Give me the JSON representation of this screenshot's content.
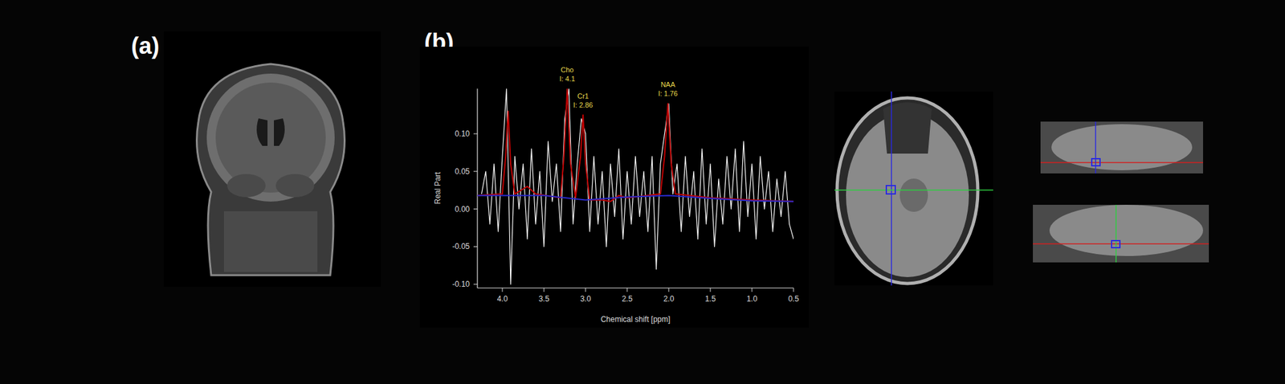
{
  "figure": {
    "panel_labels": [
      "(a)",
      "(b)"
    ]
  },
  "chart_data": {
    "type": "line",
    "xlabel": "Chemical shift [ppm]",
    "ylabel": "Real Part",
    "xlim": [
      4.3,
      0.5
    ],
    "ylim": [
      -0.105,
      0.16
    ],
    "xticks": [
      {
        "value": 4,
        "label": "4.0"
      },
      3.5,
      {
        "value": 3,
        "label": "3.0"
      },
      2.5,
      {
        "value": 2,
        "label": "2.0"
      },
      1.5,
      {
        "value": 1,
        "label": "1.0"
      },
      0.5
    ],
    "yticks": [
      {
        "value": 0.1,
        "label": "0.10"
      },
      0.05,
      {
        "value": 0,
        "label": "0.00"
      },
      -0.05,
      {
        "value": -0.1,
        "label": "-0.10"
      }
    ],
    "grid": false,
    "series": [
      {
        "color": "#ffffff",
        "x": [
          4.25,
          4.2,
          4.15,
          4.1,
          4.05,
          4.0,
          3.95,
          3.9,
          3.85,
          3.8,
          3.75,
          3.7,
          3.65,
          3.6,
          3.55,
          3.5,
          3.45,
          3.4,
          3.35,
          3.3,
          3.25,
          3.2,
          3.15,
          3.1,
          3.05,
          3.0,
          2.95,
          2.9,
          2.85,
          2.8,
          2.75,
          2.7,
          2.65,
          2.6,
          2.55,
          2.5,
          2.45,
          2.4,
          2.35,
          2.3,
          2.25,
          2.2,
          2.15,
          2.1,
          2.05,
          2.0,
          1.95,
          1.9,
          1.85,
          1.8,
          1.75,
          1.7,
          1.65,
          1.6,
          1.55,
          1.5,
          1.45,
          1.4,
          1.35,
          1.3,
          1.25,
          1.2,
          1.15,
          1.1,
          1.05,
          1.0,
          0.95,
          0.9,
          0.85,
          0.8,
          0.75,
          0.7,
          0.65,
          0.6,
          0.55,
          0.5
        ],
        "values": [
          0.02,
          0.05,
          -0.02,
          0.06,
          -0.03,
          0.07,
          0.16,
          -0.1,
          0.07,
          0.0,
          0.06,
          -0.04,
          0.08,
          -0.02,
          0.05,
          -0.05,
          0.09,
          0.01,
          0.06,
          -0.03,
          0.12,
          0.16,
          -0.02,
          0.06,
          0.12,
          0.1,
          -0.03,
          0.07,
          -0.02,
          0.05,
          -0.05,
          0.06,
          -0.01,
          0.08,
          -0.04,
          0.05,
          -0.02,
          0.07,
          -0.01,
          0.05,
          -0.03,
          0.07,
          -0.08,
          0.06,
          0.1,
          0.14,
          0.02,
          0.06,
          -0.03,
          0.07,
          -0.01,
          0.05,
          -0.04,
          0.08,
          -0.02,
          0.06,
          -0.05,
          0.04,
          -0.02,
          0.07,
          0.0,
          0.08,
          -0.03,
          0.09,
          -0.01,
          0.06,
          -0.04,
          0.07,
          0.0,
          0.05,
          -0.03,
          0.04,
          -0.01,
          0.05,
          -0.02,
          -0.04
        ]
      },
      {
        "color": "#c00000",
        "x": [
          4.3,
          4.0,
          3.96,
          3.93,
          3.9,
          3.85,
          3.7,
          3.6,
          3.3,
          3.26,
          3.22,
          3.18,
          3.12,
          3.06,
          3.03,
          3.0,
          2.95,
          2.8,
          2.7,
          2.6,
          2.5,
          2.1,
          2.05,
          2.01,
          1.97,
          1.92,
          1.5,
          1.0,
          0.5
        ],
        "values": [
          0.018,
          0.02,
          0.07,
          0.13,
          0.06,
          0.02,
          0.03,
          0.02,
          0.015,
          0.07,
          0.16,
          0.06,
          0.015,
          0.07,
          0.125,
          0.06,
          0.012,
          0.012,
          0.01,
          0.018,
          0.015,
          0.02,
          0.07,
          0.14,
          0.06,
          0.02,
          0.015,
          0.012,
          0.01
        ]
      },
      {
        "color": "#2a2ad0",
        "x": [
          4.3,
          3.5,
          3.0,
          2.5,
          2.0,
          1.5,
          1.0,
          0.5
        ],
        "values": [
          0.018,
          0.018,
          0.012,
          0.016,
          0.018,
          0.014,
          0.011,
          0.01
        ]
      }
    ],
    "annotations": [
      {
        "label": "Cho",
        "text": "I: 4.1",
        "x": 3.22,
        "y": 0.16
      },
      {
        "label": "Cr1",
        "text": "I: 2.86",
        "x": 3.03,
        "y": 0.125
      },
      {
        "label": "NAA",
        "text": "I: 1.76",
        "x": 2.01,
        "y": 0.14
      }
    ]
  }
}
